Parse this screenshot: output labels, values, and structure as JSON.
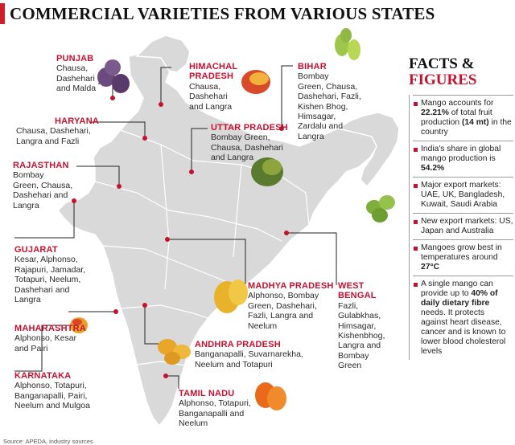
{
  "title": "COMMERCIAL VARIETIES FROM VARIOUS STATES",
  "states": [
    {
      "id": "punjab",
      "name": "PUNJAB",
      "varieties": "Chausa,\nDashehari\nand Malda"
    },
    {
      "id": "himachal",
      "name": "HIMACHAL\nPRADESH",
      "varieties": "Chausa,\nDashehari\nand Langra"
    },
    {
      "id": "bihar",
      "name": "BIHAR",
      "varieties": "Bombay\nGreen, Chausa,\nDashehari, Fazli,\nKishen Bhog,\nHimsagar,\nZardalu and\nLangra"
    },
    {
      "id": "haryana",
      "name": "HARYANA",
      "varieties": "Chausa, Dashehari,\nLangra and Fazli"
    },
    {
      "id": "uttar",
      "name": "UTTAR PRADESH",
      "varieties": "Bombay Green,\nChausa, Dashehari\nand Langra"
    },
    {
      "id": "rajasthan",
      "name": "RAJASTHAN",
      "varieties": "Bombay\nGreen, Chausa,\nDashehari and\nLangra"
    },
    {
      "id": "gujarat",
      "name": "GUJARAT",
      "varieties": "Kesar, Alphonso,\nRajapuri, Jamadar,\nTotapuri, Neelum,\nDashehari and\nLangra"
    },
    {
      "id": "madhya",
      "name": "MADHYA PRADESH",
      "varieties": "Alphonso, Bombay\nGreen, Dashehari,\nFazli, Langra and\nNeelum"
    },
    {
      "id": "westbengal",
      "name": "WEST\nBENGAL",
      "varieties": "Fazli,\nGulabkhas,\nHimsagar,\nKishenbhog,\nLangra and\nBombay\nGreen"
    },
    {
      "id": "maharashtra",
      "name": "MAHARASHTRA",
      "varieties": "Alphonso, Kesar\nand Pairi"
    },
    {
      "id": "andhra",
      "name": "ANDHRA PRADESH",
      "varieties": "Banganapalli, Suvarnarekha,\nNeelum and Totapuri"
    },
    {
      "id": "karnataka",
      "name": "KARNATAKA",
      "varieties": "Alphonso, Totapuri,\nBanganapalli, Pairi,\nNeelum and Mulgoa"
    },
    {
      "id": "tamilnadu",
      "name": "TAMIL NADU",
      "varieties": "Alphonso, Totapuri,\nBanganapalli and\nNeelum"
    }
  ],
  "facts": {
    "heading_line1": "FACTS &",
    "heading_line2": "FIGURES",
    "items": [
      {
        "pre": "Mango accounts for ",
        "bold": "22.21%",
        "mid": " of total fruit production ",
        "bold2": "(14 mt)",
        "post": " in the country"
      },
      {
        "pre": "India's share in global mango production is ",
        "bold": "54.2%",
        "mid": "",
        "bold2": "",
        "post": ""
      },
      {
        "pre": "Major export markets: UAE, UK, Bangladesh, Kuwait, Saudi Arabia",
        "bold": "",
        "mid": "",
        "bold2": "",
        "post": ""
      },
      {
        "pre": "New export markets: US, Japan and Australia",
        "bold": "",
        "mid": "",
        "bold2": "",
        "post": ""
      },
      {
        "pre": "Mangoes grow best in temperatures around ",
        "bold": "27°C",
        "mid": "",
        "bold2": "",
        "post": ""
      },
      {
        "pre": "A single mango can provide up to ",
        "bold": "40% of daily dietary fibre",
        "mid": " needs. It protects against heart disease, cancer and is known to lower blood cholesterol levels",
        "bold2": "",
        "post": ""
      }
    ]
  },
  "source": "Source: APEDA, industry sources",
  "colors": {
    "accent": "#c8102e",
    "map_fill": "#d9d9d9",
    "map_stroke": "#ffffff",
    "leader": "#222222"
  }
}
